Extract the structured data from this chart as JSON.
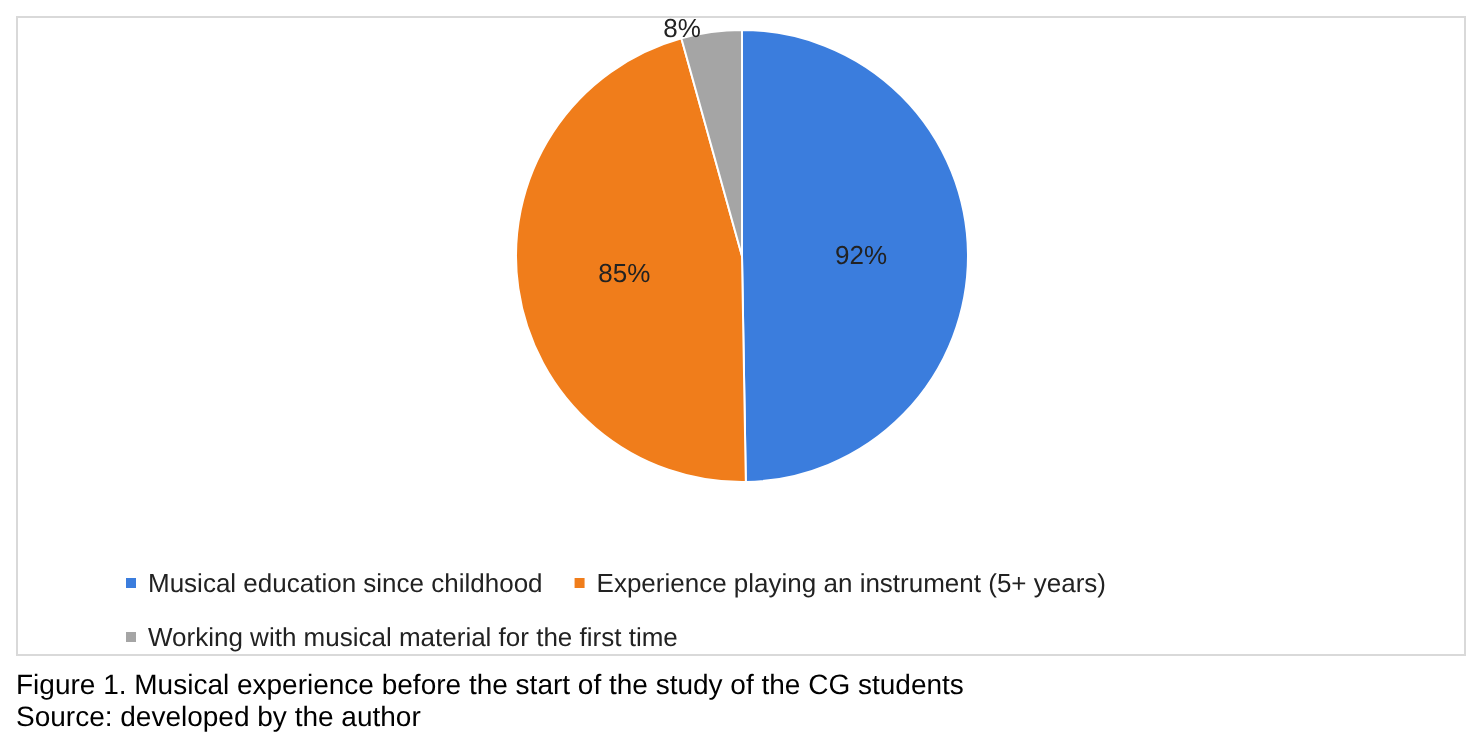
{
  "chart_data": {
    "type": "pie",
    "categories": [
      "Musical education since childhood",
      "Experience playing an instrument (5+ years)",
      "Working with musical material for the first time"
    ],
    "values": [
      92,
      85,
      8
    ],
    "colors": [
      "#3b7ddd",
      "#f07d1b",
      "#a5a5a5"
    ],
    "value_labels": [
      "92%",
      "85%",
      "8%"
    ],
    "legend": "bottom",
    "annotations": [
      "Figure 1. Musical experience before the start of the study of the CG students",
      "Source: developed by the author"
    ]
  }
}
